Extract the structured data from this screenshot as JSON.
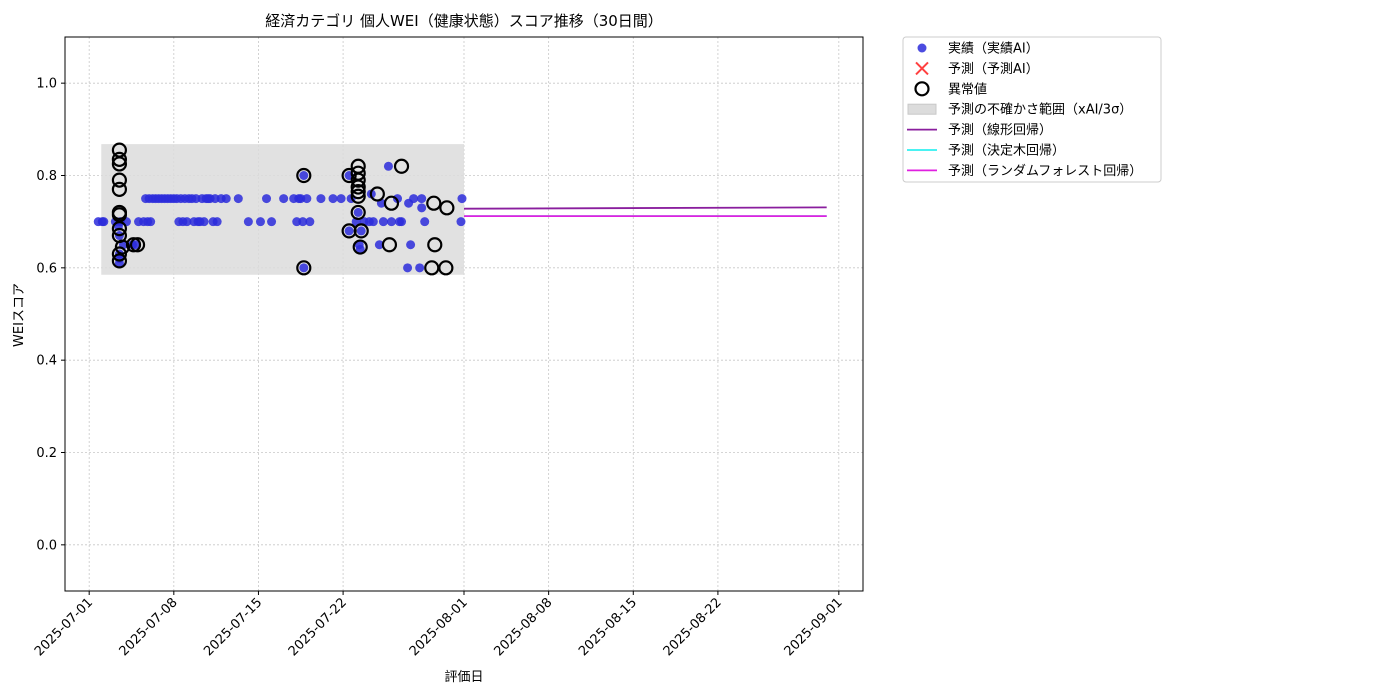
{
  "chart_data": {
    "type": "scatter",
    "title": "経済カテゴリ 個人WEI（健康状態）スコア推移（30日間）",
    "xlabel": "評価日",
    "ylabel": "WEIスコア",
    "xlim": [
      "2025-06-29",
      "2025-09-03"
    ],
    "ylim": [
      -0.1,
      1.1
    ],
    "y_ticks": [
      "0.0",
      "0.2",
      "0.4",
      "0.6",
      "0.8",
      "1.0"
    ],
    "x_ticks": [
      "2025-07-01",
      "2025-07-08",
      "2025-07-15",
      "2025-07-22",
      "2025-08-01",
      "2025-08-08",
      "2025-08-15",
      "2025-08-22",
      "2025-09-01"
    ],
    "grid": true,
    "legend_position": "outside-top-right",
    "uncertainty_band": {
      "label": "予測の不確かさ範囲（xAI/3σ）",
      "x_start": "2025-07-02",
      "x_end": "2025-08-01",
      "y_low": 0.585,
      "y_high": 0.868,
      "color": "#dcdcdc"
    },
    "series": [
      {
        "name": "実績（実績AI）",
        "kind": "scatter",
        "color": "#2b2bdb",
        "points": [
          [
            "2025-07-01T18:00",
            0.7
          ],
          [
            "2025-07-02T02:00",
            0.7
          ],
          [
            "2025-07-02T05:00",
            0.7
          ],
          [
            "2025-07-03T04:00",
            0.7
          ],
          [
            "2025-07-03T10:00",
            0.69
          ],
          [
            "2025-07-03T12:00",
            0.67
          ],
          [
            "2025-07-03T12:00",
            0.62
          ],
          [
            "2025-07-03T12:00",
            0.61
          ],
          [
            "2025-07-03T12:00",
            0.63
          ],
          [
            "2025-07-03T14:00",
            0.7
          ],
          [
            "2025-07-03T20:00",
            0.65
          ],
          [
            "2025-07-04T02:00",
            0.7
          ],
          [
            "2025-07-04T14:00",
            0.65
          ],
          [
            "2025-07-04T20:00",
            0.65
          ],
          [
            "2025-07-05T02:00",
            0.7
          ],
          [
            "2025-07-05T12:00",
            0.7
          ],
          [
            "2025-07-05T16:00",
            0.75
          ],
          [
            "2025-07-05T20:00",
            0.7
          ],
          [
            "2025-07-05T23:00",
            0.75
          ],
          [
            "2025-07-06T02:00",
            0.7
          ],
          [
            "2025-07-06T06:00",
            0.75
          ],
          [
            "2025-07-06T12:00",
            0.75
          ],
          [
            "2025-07-06T18:00",
            0.75
          ],
          [
            "2025-07-07T00:00",
            0.75
          ],
          [
            "2025-07-07T06:00",
            0.75
          ],
          [
            "2025-07-07T12:00",
            0.75
          ],
          [
            "2025-07-07T18:00",
            0.75
          ],
          [
            "2025-07-08T00:00",
            0.75
          ],
          [
            "2025-07-08T06:00",
            0.75
          ],
          [
            "2025-07-08T10:00",
            0.7
          ],
          [
            "2025-07-08T14:00",
            0.75
          ],
          [
            "2025-07-08T18:00",
            0.7
          ],
          [
            "2025-07-08T22:00",
            0.75
          ],
          [
            "2025-07-09T02:00",
            0.7
          ],
          [
            "2025-07-09T06:00",
            0.75
          ],
          [
            "2025-07-09T12:00",
            0.75
          ],
          [
            "2025-07-09T16:00",
            0.7
          ],
          [
            "2025-07-09T20:00",
            0.75
          ],
          [
            "2025-07-10T00:00",
            0.7
          ],
          [
            "2025-07-10T04:00",
            0.7
          ],
          [
            "2025-07-10T08:00",
            0.75
          ],
          [
            "2025-07-10T12:00",
            0.7
          ],
          [
            "2025-07-10T16:00",
            0.75
          ],
          [
            "2025-07-10T20:00",
            0.75
          ],
          [
            "2025-07-11T00:00",
            0.75
          ],
          [
            "2025-07-11T06:00",
            0.7
          ],
          [
            "2025-07-11T10:00",
            0.75
          ],
          [
            "2025-07-11T14:00",
            0.7
          ],
          [
            "2025-07-11T22:00",
            0.75
          ],
          [
            "2025-07-12T08:00",
            0.75
          ],
          [
            "2025-07-13T08:00",
            0.75
          ],
          [
            "2025-07-14T04:00",
            0.7
          ],
          [
            "2025-07-15T04:00",
            0.7
          ],
          [
            "2025-07-15T16:00",
            0.75
          ],
          [
            "2025-07-16T02:00",
            0.7
          ],
          [
            "2025-07-17T02:00",
            0.75
          ],
          [
            "2025-07-17T22:00",
            0.75
          ],
          [
            "2025-07-18T04:00",
            0.7
          ],
          [
            "2025-07-18T08:00",
            0.75
          ],
          [
            "2025-07-18T12:00",
            0.75
          ],
          [
            "2025-07-18T16:00",
            0.7
          ],
          [
            "2025-07-18T18:00",
            0.6
          ],
          [
            "2025-07-18T18:00",
            0.8
          ],
          [
            "2025-07-19T00:00",
            0.75
          ],
          [
            "2025-07-19T06:00",
            0.7
          ],
          [
            "2025-07-20T04:00",
            0.75
          ],
          [
            "2025-07-21T04:00",
            0.75
          ],
          [
            "2025-07-21T20:00",
            0.75
          ],
          [
            "2025-07-22T12:00",
            0.8
          ],
          [
            "2025-07-22T12:00",
            0.68
          ],
          [
            "2025-07-22T16:00",
            0.75
          ],
          [
            "2025-07-23T02:00",
            0.7
          ],
          [
            "2025-07-23T06:00",
            0.72
          ],
          [
            "2025-07-23T08:00",
            0.65
          ],
          [
            "2025-07-23T10:00",
            0.64
          ],
          [
            "2025-07-23T12:00",
            0.68
          ],
          [
            "2025-07-23T18:00",
            0.7
          ],
          [
            "2025-07-24T04:00",
            0.7
          ],
          [
            "2025-07-24T08:00",
            0.76
          ],
          [
            "2025-07-24T12:00",
            0.7
          ],
          [
            "2025-07-25T00:00",
            0.65
          ],
          [
            "2025-07-25T04:00",
            0.74
          ],
          [
            "2025-07-25T08:00",
            0.7
          ],
          [
            "2025-07-25T18:00",
            0.82
          ],
          [
            "2025-07-26T00:00",
            0.7
          ],
          [
            "2025-07-26T12:00",
            0.75
          ],
          [
            "2025-07-26T16:00",
            0.7
          ],
          [
            "2025-07-26T20:00",
            0.7
          ],
          [
            "2025-07-27T08:00",
            0.6
          ],
          [
            "2025-07-27T10:00",
            0.74
          ],
          [
            "2025-07-27T14:00",
            0.65
          ],
          [
            "2025-07-27T20:00",
            0.75
          ],
          [
            "2025-07-28T08:00",
            0.6
          ],
          [
            "2025-07-28T12:00",
            0.73
          ],
          [
            "2025-07-28T12:00",
            0.75
          ],
          [
            "2025-07-28T18:00",
            0.7
          ],
          [
            "2025-07-31T18:00",
            0.7
          ],
          [
            "2025-07-31T20:00",
            0.75
          ]
        ]
      },
      {
        "name": "予測（予測AI）",
        "kind": "marker-x",
        "color": "#ff4040",
        "points": []
      },
      {
        "name": "異常値",
        "kind": "ring",
        "color": "#000000",
        "points": [
          [
            "2025-07-03T12:00",
            0.855
          ],
          [
            "2025-07-03T12:00",
            0.835
          ],
          [
            "2025-07-03T12:00",
            0.825
          ],
          [
            "2025-07-03T12:00",
            0.79
          ],
          [
            "2025-07-03T12:00",
            0.77
          ],
          [
            "2025-07-03T12:00",
            0.72
          ],
          [
            "2025-07-03T12:00",
            0.715
          ],
          [
            "2025-07-03T12:00",
            0.685
          ],
          [
            "2025-07-03T12:00",
            0.67
          ],
          [
            "2025-07-03T12:00",
            0.63
          ],
          [
            "2025-07-03T12:00",
            0.615
          ],
          [
            "2025-07-03T18:00",
            0.645
          ],
          [
            "2025-07-04T16:00",
            0.65
          ],
          [
            "2025-07-05T00:00",
            0.65
          ],
          [
            "2025-07-18T18:00",
            0.8
          ],
          [
            "2025-07-18T18:00",
            0.6
          ],
          [
            "2025-07-22T12:00",
            0.8
          ],
          [
            "2025-07-22T12:00",
            0.68
          ],
          [
            "2025-07-23T06:00",
            0.82
          ],
          [
            "2025-07-23T06:00",
            0.805
          ],
          [
            "2025-07-23T06:00",
            0.79
          ],
          [
            "2025-07-23T06:00",
            0.775
          ],
          [
            "2025-07-23T06:00",
            0.765
          ],
          [
            "2025-07-23T06:00",
            0.755
          ],
          [
            "2025-07-23T06:00",
            0.72
          ],
          [
            "2025-07-23T10:00",
            0.645
          ],
          [
            "2025-07-23T12:00",
            0.68
          ],
          [
            "2025-07-24T20:00",
            0.76
          ],
          [
            "2025-07-25T20:00",
            0.65
          ],
          [
            "2025-07-26T00:00",
            0.74
          ],
          [
            "2025-07-26T20:00",
            0.82
          ],
          [
            "2025-07-29T08:00",
            0.6
          ],
          [
            "2025-07-29T12:00",
            0.74
          ],
          [
            "2025-07-29T14:00",
            0.65
          ],
          [
            "2025-07-30T12:00",
            0.6
          ],
          [
            "2025-07-30T14:00",
            0.73
          ]
        ]
      },
      {
        "name": "予測（線形回帰）",
        "kind": "line",
        "color": "#8a1e9e",
        "points": [
          [
            "2025-08-01",
            0.728
          ],
          [
            "2025-08-31",
            0.731
          ]
        ]
      },
      {
        "name": "予測（決定木回帰）",
        "kind": "line",
        "color": "#30f0f0",
        "points": [
          [
            "2025-08-01",
            0.712
          ],
          [
            "2025-08-31",
            0.712
          ]
        ]
      },
      {
        "name": "予測（ランダムフォレスト回帰）",
        "kind": "line",
        "color": "#e020e0",
        "points": [
          [
            "2025-08-01",
            0.712
          ],
          [
            "2025-08-31",
            0.712
          ]
        ]
      }
    ]
  }
}
